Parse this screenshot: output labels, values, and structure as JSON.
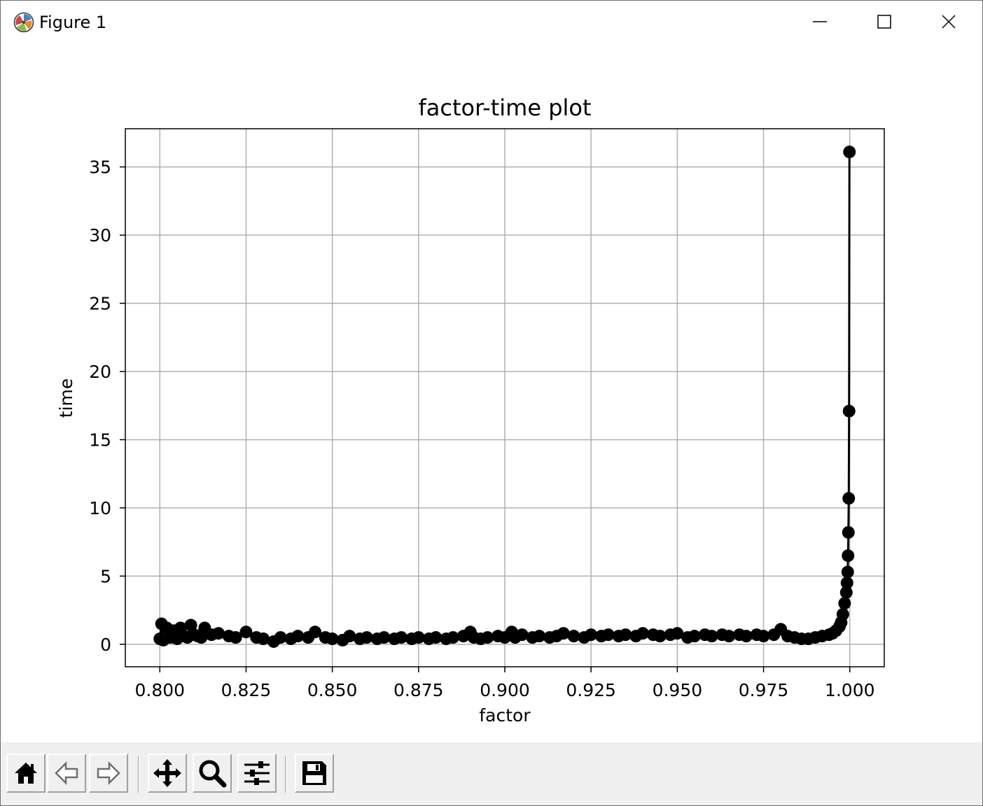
{
  "window": {
    "title": "Figure 1",
    "icons": {
      "app": "matplotlib-icon",
      "minimize": "minimize-icon",
      "maximize": "maximize-icon",
      "close": "close-icon"
    }
  },
  "toolbar": {
    "buttons": [
      {
        "name": "home",
        "icon": "home-icon"
      },
      {
        "name": "back",
        "icon": "back-arrow-icon"
      },
      {
        "name": "forward",
        "icon": "forward-arrow-icon"
      },
      {
        "name": "pan",
        "icon": "move-icon"
      },
      {
        "name": "zoom",
        "icon": "zoom-icon"
      },
      {
        "name": "configure-subplots",
        "icon": "sliders-icon"
      },
      {
        "name": "save",
        "icon": "save-icon"
      }
    ]
  },
  "chart_data": {
    "type": "line",
    "title": "factor-time plot",
    "xlabel": "factor",
    "ylabel": "time",
    "xlim": [
      0.79,
      1.01
    ],
    "ylim": [
      -1.65,
      37.8
    ],
    "xticks": [
      0.8,
      0.825,
      0.85,
      0.875,
      0.9,
      0.925,
      0.95,
      0.975,
      1.0
    ],
    "xtick_labels": [
      "0.800",
      "0.825",
      "0.850",
      "0.875",
      "0.900",
      "0.925",
      "0.950",
      "0.975",
      "1.000"
    ],
    "yticks": [
      0,
      5,
      10,
      15,
      20,
      25,
      30,
      35
    ],
    "ytick_labels": [
      "0",
      "5",
      "10",
      "15",
      "20",
      "25",
      "30",
      "35"
    ],
    "grid": true,
    "marker": "circle",
    "color": "#000000",
    "series": [
      {
        "x": [
          0.8,
          0.8005,
          0.801,
          0.802,
          0.803,
          0.804,
          0.805,
          0.806,
          0.807,
          0.808,
          0.809,
          0.81,
          0.811,
          0.812,
          0.813,
          0.815,
          0.817,
          0.82,
          0.822,
          0.825,
          0.828,
          0.83,
          0.833,
          0.835,
          0.838,
          0.84,
          0.843,
          0.845,
          0.848,
          0.85,
          0.853,
          0.855,
          0.858,
          0.86,
          0.863,
          0.865,
          0.868,
          0.87,
          0.873,
          0.875,
          0.878,
          0.88,
          0.883,
          0.885,
          0.888,
          0.89,
          0.891,
          0.893,
          0.895,
          0.898,
          0.9,
          0.902,
          0.903,
          0.905,
          0.908,
          0.91,
          0.913,
          0.915,
          0.917,
          0.92,
          0.923,
          0.925,
          0.928,
          0.93,
          0.933,
          0.935,
          0.938,
          0.94,
          0.943,
          0.945,
          0.948,
          0.95,
          0.953,
          0.955,
          0.958,
          0.96,
          0.963,
          0.965,
          0.968,
          0.97,
          0.973,
          0.975,
          0.978,
          0.98,
          0.982,
          0.984,
          0.986,
          0.988,
          0.99,
          0.992,
          0.994,
          0.995,
          0.996,
          0.997,
          0.9975,
          0.998,
          0.9985,
          0.999,
          0.9992,
          0.9994,
          0.9995,
          0.9996,
          0.9997,
          0.9998,
          0.9999
        ],
        "y": [
          0.4,
          1.5,
          0.3,
          1.2,
          0.5,
          1.0,
          0.4,
          1.2,
          0.6,
          0.5,
          1.4,
          0.7,
          0.6,
          0.5,
          1.2,
          0.7,
          0.8,
          0.6,
          0.5,
          0.9,
          0.5,
          0.4,
          0.2,
          0.5,
          0.4,
          0.6,
          0.5,
          0.9,
          0.5,
          0.4,
          0.3,
          0.6,
          0.4,
          0.5,
          0.4,
          0.5,
          0.4,
          0.5,
          0.4,
          0.5,
          0.4,
          0.5,
          0.4,
          0.5,
          0.6,
          0.9,
          0.5,
          0.4,
          0.5,
          0.6,
          0.5,
          0.9,
          0.5,
          0.7,
          0.5,
          0.6,
          0.5,
          0.6,
          0.8,
          0.6,
          0.5,
          0.7,
          0.6,
          0.7,
          0.6,
          0.7,
          0.6,
          0.8,
          0.7,
          0.6,
          0.7,
          0.8,
          0.5,
          0.6,
          0.7,
          0.6,
          0.7,
          0.6,
          0.7,
          0.6,
          0.7,
          0.6,
          0.7,
          1.1,
          0.6,
          0.5,
          0.4,
          0.4,
          0.5,
          0.6,
          0.7,
          0.8,
          1.0,
          1.3,
          1.6,
          2.2,
          3.0,
          3.8,
          4.5,
          5.3,
          6.5,
          8.2,
          10.7,
          17.1,
          36.1
        ]
      }
    ]
  }
}
